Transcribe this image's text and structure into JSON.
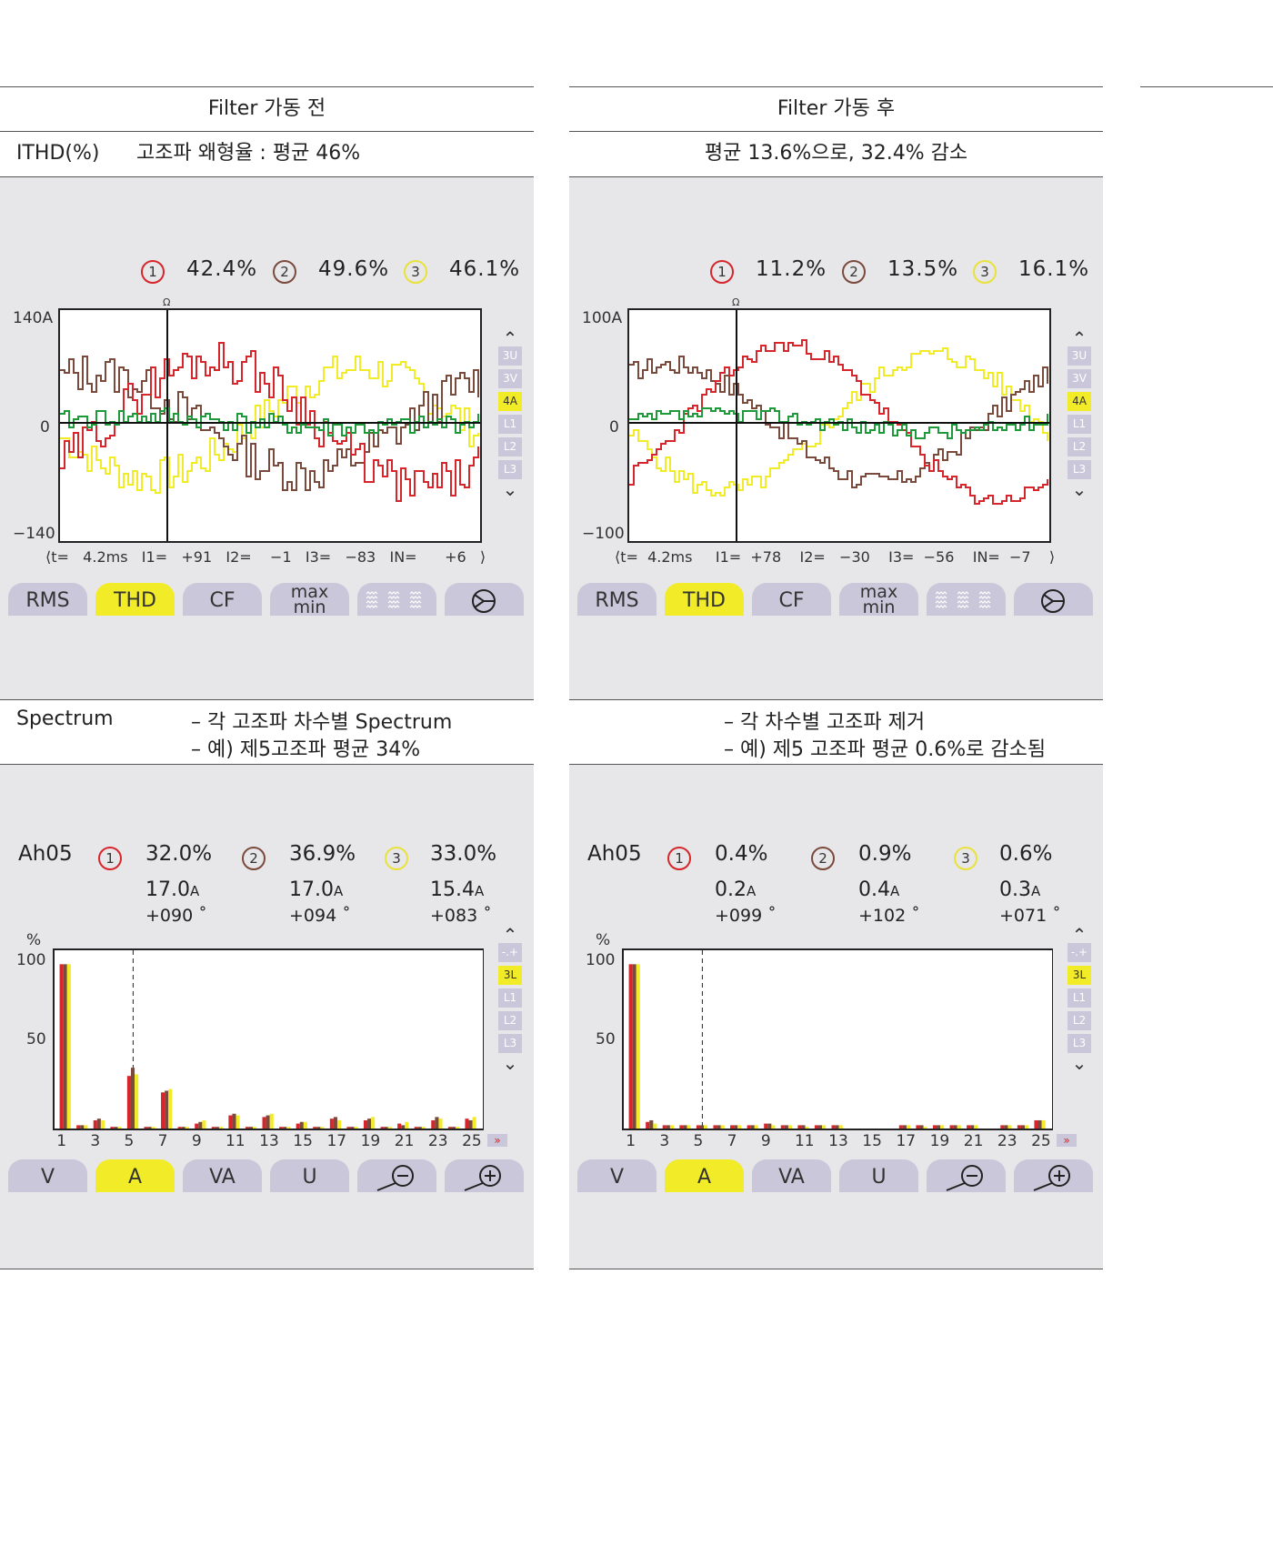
{
  "before": {
    "title": "Filter 가동 전",
    "ithd_label": "ITHD(%)",
    "ithd_text": "고조파 왜형율 : 평균 46%",
    "waveform": {
      "phase_labels": [
        "1",
        "2",
        "3"
      ],
      "values": [
        "42.4%",
        "49.6%",
        "46.1%"
      ],
      "y_max": "140A",
      "y_zero": "0",
      "y_min": "−140",
      "cursor_mark": "Ω",
      "readout": "⟨t=   4.2ms   I1=   +91   I2=    −1   I3=   −83   IN=      +6   ⟩",
      "side_buttons": [
        "3U",
        "3V",
        "4A",
        "L1",
        "L2",
        "L3"
      ],
      "side_active": "4A",
      "buttons": [
        "RMS",
        "THD",
        "CF",
        "max",
        "min"
      ],
      "active_button": "THD"
    },
    "spectrum_label": "Spectrum",
    "spectrum_line1": "– 각 고조파 차수별 Spectrum",
    "spectrum_line2": "– 예) 제5고조파 평균 34%",
    "harmonic": {
      "label": "Ah05",
      "pct": [
        "32.0%",
        "36.9%",
        "33.0%"
      ],
      "amp": [
        "17.0",
        "17.0",
        "15.4"
      ],
      "amp_unit": "A",
      "angle": [
        "+090 ˚",
        "+094 ˚",
        "+083 ˚"
      ],
      "y_unit": "%",
      "y_ticks": [
        "100",
        "50"
      ],
      "x_ticks": [
        "1",
        "3",
        "5",
        "7",
        "9",
        "11",
        "13",
        "15",
        "17",
        "19",
        "21",
        "23",
        "25"
      ],
      "side_buttons": [
        "-.+",
        "3L",
        "L1",
        "L2",
        "L3"
      ],
      "side_active": "3L",
      "buttons": [
        "V",
        "A",
        "VA",
        "U"
      ],
      "active_button": "A"
    }
  },
  "after": {
    "title": "Filter 가동 후",
    "ithd_text": "평균 13.6%으로, 32.4% 감소",
    "waveform": {
      "phase_labels": [
        "1",
        "2",
        "3"
      ],
      "values": [
        "11.2%",
        "13.5%",
        "16.1%"
      ],
      "y_max": "100A",
      "y_zero": "0",
      "y_min": "−100",
      "cursor_mark": "Ω",
      "readout": "⟨t=  4.2ms     I1=  +78    I2=   −30    I3=  −56    IN=  −7    ⟩",
      "side_buttons": [
        "3U",
        "3V",
        "4A",
        "L1",
        "L2",
        "L3"
      ],
      "side_active": "4A",
      "buttons": [
        "RMS",
        "THD",
        "CF",
        "max",
        "min"
      ],
      "active_button": "THD"
    },
    "spectrum_line1": "– 각 차수별 고조파 제거",
    "spectrum_line2": "– 예) 제5 고조파 평균 0.6%로 감소됨",
    "harmonic": {
      "label": "Ah05",
      "pct": [
        "0.4%",
        "0.9%",
        "0.6%"
      ],
      "amp": [
        "0.2",
        "0.4",
        "0.3"
      ],
      "amp_unit": "A",
      "angle": [
        "+099 ˚",
        "+102 ˚",
        "+071 ˚"
      ],
      "y_unit": "%",
      "y_ticks": [
        "100",
        "50"
      ],
      "x_ticks": [
        "1",
        "3",
        "5",
        "7",
        "9",
        "11",
        "13",
        "15",
        "17",
        "19",
        "21",
        "23",
        "25"
      ],
      "side_buttons": [
        "-.+",
        "3L",
        "L1",
        "L2",
        "L3"
      ],
      "side_active": "3L",
      "buttons": [
        "V",
        "A",
        "VA",
        "U"
      ],
      "active_button": "A"
    }
  },
  "colors": {
    "phase1": "#d6262c",
    "phase2": "#7a4a3c",
    "phase3": "#f2ec28",
    "neutral": "#1e9a3a",
    "active": "#f2ec28",
    "button": "#c9c7d9",
    "panel": "#e7e6e8"
  },
  "chart_data": [
    {
      "type": "bar",
      "title": "",
      "ylabel": "%",
      "ylim": [
        0,
        110
      ],
      "categories": [
        "1",
        "2",
        "3",
        "4",
        "5",
        "6",
        "7",
        "8",
        "9",
        "10",
        "11",
        "12",
        "13",
        "14",
        "15",
        "16",
        "17",
        "18",
        "19",
        "20",
        "21",
        "22",
        "23",
        "24",
        "25"
      ],
      "series": [
        {
          "values": [
            100,
            2,
            5,
            1,
            32,
            1,
            22,
            1,
            3,
            1,
            8,
            1,
            7,
            1,
            3,
            1,
            6,
            1,
            5,
            1,
            3,
            1,
            5,
            1,
            6
          ]
        },
        {
          "values": [
            100,
            2,
            6,
            1,
            37,
            1,
            23,
            1,
            4,
            1,
            9,
            1,
            8,
            1,
            4,
            1,
            7,
            1,
            6,
            1,
            2,
            1,
            7,
            1,
            5
          ]
        },
        {
          "values": [
            100,
            2,
            5,
            1,
            33,
            1,
            24,
            1,
            5,
            1,
            8,
            1,
            9,
            1,
            4,
            1,
            5,
            1,
            7,
            1,
            4,
            1,
            6,
            1,
            7
          ]
        }
      ]
    },
    {
      "type": "bar",
      "title": "",
      "ylabel": "%",
      "ylim": [
        0,
        110
      ],
      "categories": [
        "1",
        "2",
        "3",
        "4",
        "5",
        "6",
        "7",
        "8",
        "9",
        "10",
        "11",
        "12",
        "13",
        "14",
        "15",
        "16",
        "17",
        "18",
        "19",
        "20",
        "21",
        "22",
        "23",
        "24",
        "25"
      ],
      "series": [
        {
          "values": [
            100,
            4,
            2,
            2,
            2,
            2,
            2,
            2,
            3,
            2,
            2,
            2,
            2,
            0,
            0,
            0,
            2,
            2,
            2,
            2,
            2,
            0,
            2,
            2,
            5
          ]
        },
        {
          "values": [
            100,
            5,
            2,
            2,
            2,
            2,
            2,
            2,
            3,
            2,
            2,
            2,
            2,
            0,
            0,
            0,
            2,
            2,
            2,
            2,
            2,
            0,
            2,
            2,
            5
          ]
        },
        {
          "values": [
            100,
            3,
            2,
            2,
            2,
            2,
            2,
            2,
            2,
            2,
            1,
            2,
            2,
            0,
            0,
            0,
            2,
            1,
            2,
            2,
            2,
            0,
            2,
            2,
            5
          ]
        }
      ]
    }
  ]
}
